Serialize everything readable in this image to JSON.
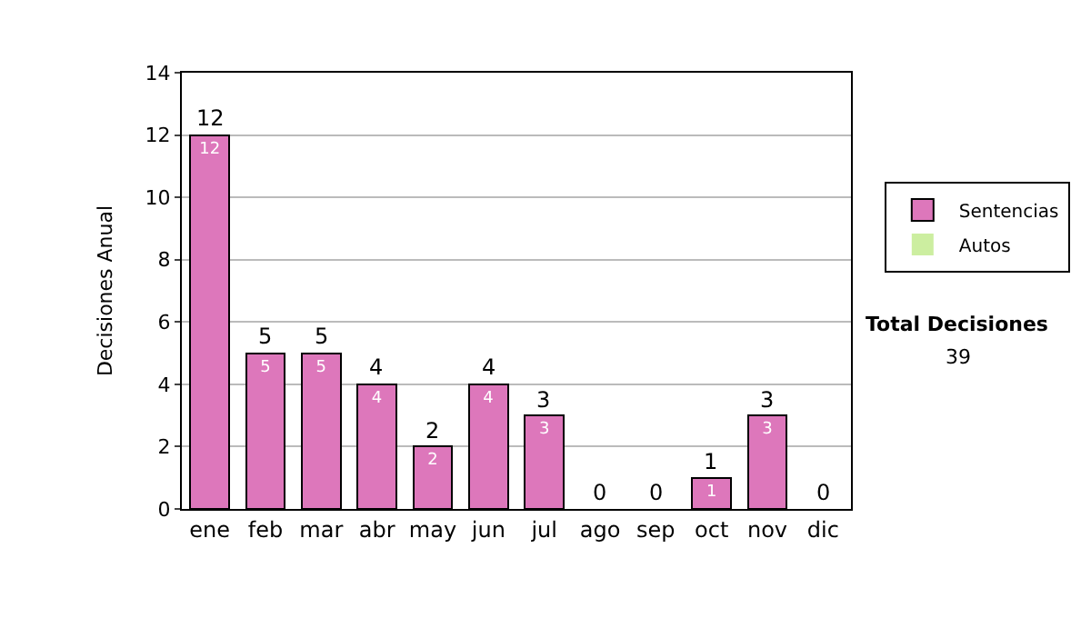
{
  "chart_data": {
    "type": "bar",
    "stacked": true,
    "ylabel": "Decisiones Anual",
    "categories": [
      "ene",
      "feb",
      "mar",
      "abr",
      "may",
      "jun",
      "jul",
      "ago",
      "sep",
      "oct",
      "nov",
      "dic"
    ],
    "series": [
      {
        "name": "Sentencias",
        "color": "#dd77bb",
        "values": [
          12,
          5,
          5,
          4,
          2,
          4,
          3,
          0,
          0,
          1,
          3,
          0
        ],
        "value_labels": [
          "12",
          "5",
          "5",
          "4",
          "2",
          "4",
          "3",
          null,
          null,
          "1",
          "3",
          null
        ]
      },
      {
        "name": "Autos",
        "color": "#cceea0",
        "values": [
          0,
          0,
          0,
          0,
          0,
          0,
          0,
          0,
          0,
          0,
          0,
          0
        ]
      }
    ],
    "totals": [
      "12",
      "5",
      "5",
      "4",
      "2",
      "4",
      "3",
      "0",
      "0",
      "1",
      "3",
      "0"
    ],
    "ylim": [
      0,
      14
    ],
    "yticks": [
      0,
      2,
      4,
      6,
      8,
      10,
      12,
      14
    ],
    "grid": "y",
    "legend": "right",
    "annotations": [
      "Total Decisiones",
      "39"
    ]
  }
}
